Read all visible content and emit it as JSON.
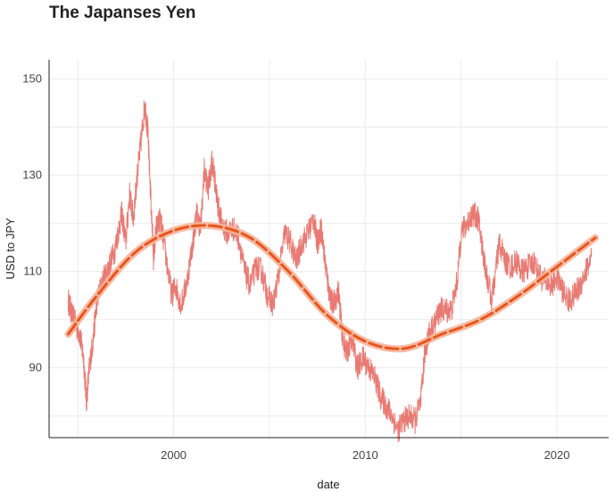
{
  "chart_data": {
    "type": "line",
    "title": "The Japanses Yen",
    "xlabel": "date",
    "ylabel": "USD to JPY",
    "xlim": [
      1993.5,
      2022.7
    ],
    "ylim": [
      75.5,
      154
    ],
    "x_ticks": [
      2000,
      2010,
      2020
    ],
    "x_tick_labels": [
      "2000",
      "2010",
      "2020"
    ],
    "y_ticks": [
      90,
      110,
      130,
      150
    ],
    "y_tick_labels": [
      "90",
      "110",
      "130",
      "150"
    ],
    "grid": true,
    "series": [
      {
        "role": "daily rate",
        "color": "#e8736b",
        "x": [
          1994.5,
          1994.7,
          1994.9,
          1995.1,
          1995.3,
          1995.45,
          1995.6,
          1995.8,
          1996.0,
          1996.3,
          1996.6,
          1996.9,
          1997.1,
          1997.3,
          1997.5,
          1997.7,
          1997.9,
          1998.1,
          1998.3,
          1998.5,
          1998.65,
          1998.8,
          1998.95,
          1999.1,
          1999.3,
          1999.6,
          1999.9,
          2000.1,
          2000.4,
          2000.7,
          2001.0,
          2001.2,
          2001.4,
          2001.6,
          2001.8,
          2002.0,
          2002.15,
          2002.3,
          2002.5,
          2002.8,
          2003.1,
          2003.4,
          2003.7,
          2004.0,
          2004.3,
          2004.6,
          2004.9,
          2005.2,
          2005.5,
          2005.8,
          2006.1,
          2006.4,
          2006.7,
          2007.0,
          2007.3,
          2007.5,
          2007.7,
          2007.9,
          2008.1,
          2008.3,
          2008.6,
          2008.8,
          2009.0,
          2009.3,
          2009.6,
          2009.9,
          2010.2,
          2010.5,
          2010.8,
          2011.1,
          2011.4,
          2011.7,
          2012.0,
          2012.3,
          2012.6,
          2012.9,
          2013.1,
          2013.3,
          2013.6,
          2013.9,
          2014.2,
          2014.5,
          2014.8,
          2015.0,
          2015.3,
          2015.6,
          2015.9,
          2016.1,
          2016.3,
          2016.6,
          2016.9,
          2017.0,
          2017.3,
          2017.6,
          2017.9,
          2018.2,
          2018.5,
          2018.8,
          2019.1,
          2019.4,
          2019.7,
          2020.0,
          2020.3,
          2020.6,
          2020.9,
          2021.2,
          2021.5,
          2021.8
        ],
        "y": [
          104,
          101,
          99,
          97,
          92,
          83,
          90,
          96,
          104,
          108,
          111,
          114,
          118,
          122,
          116,
          126,
          121,
          130,
          137,
          145,
          139,
          126,
          113,
          119,
          121,
          113,
          105,
          107,
          103,
          108,
          116,
          122,
          119,
          131,
          127,
          133,
          129,
          124,
          120,
          118,
          119,
          117,
          110,
          107,
          111,
          110,
          105,
          103,
          110,
          118,
          116,
          112,
          116,
          118,
          121,
          116,
          119,
          112,
          106,
          103,
          106,
          97,
          93,
          96,
          90,
          92,
          90,
          88,
          84,
          82,
          80,
          77,
          79,
          80,
          79,
          83,
          93,
          97,
          99,
          102,
          102,
          102,
          108,
          118,
          120,
          122,
          121,
          115,
          110,
          104,
          113,
          116,
          112,
          111,
          112,
          110,
          111,
          112,
          109,
          108,
          107,
          109,
          106,
          104,
          105,
          107,
          110,
          113
        ]
      },
      {
        "role": "trend",
        "color": "#e8561c",
        "band_color": "#f5b49a",
        "x": [
          1994.5,
          1996,
          1998,
          2000,
          2002,
          2004,
          2006,
          2008,
          2010,
          2012,
          2014,
          2016,
          2018,
          2020,
          2022
        ],
        "y": [
          97,
          105,
          114,
          118.5,
          119.5,
          117,
          110,
          101,
          95.5,
          94,
          97,
          100,
          105,
          111,
          117
        ]
      }
    ]
  }
}
